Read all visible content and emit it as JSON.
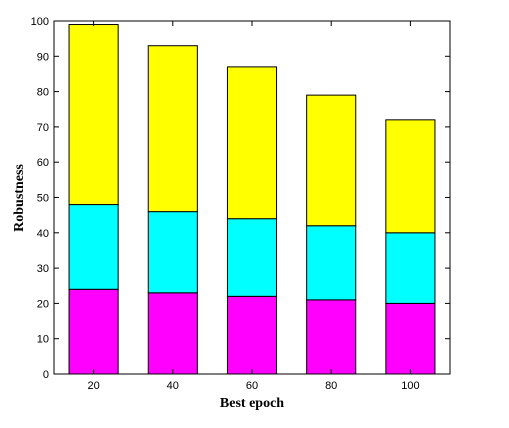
{
  "chart_data": {
    "type": "bar",
    "stacked": true,
    "title": "",
    "xlabel": "Best epoch",
    "ylabel": "Robustness",
    "categories": [
      "20",
      "40",
      "60",
      "80",
      "100"
    ],
    "ylim": [
      0,
      100
    ],
    "yticks": [
      0,
      10,
      20,
      30,
      40,
      50,
      60,
      70,
      80,
      90,
      100
    ],
    "grid": false,
    "legend": "none",
    "series": [
      {
        "color": "#ff00ff",
        "values": [
          24,
          23,
          22,
          21,
          20
        ]
      },
      {
        "color": "#00ffff",
        "values": [
          24,
          23,
          22,
          21,
          20
        ]
      },
      {
        "color": "#ffff00",
        "values": [
          51,
          47,
          43,
          37,
          32
        ]
      }
    ]
  }
}
